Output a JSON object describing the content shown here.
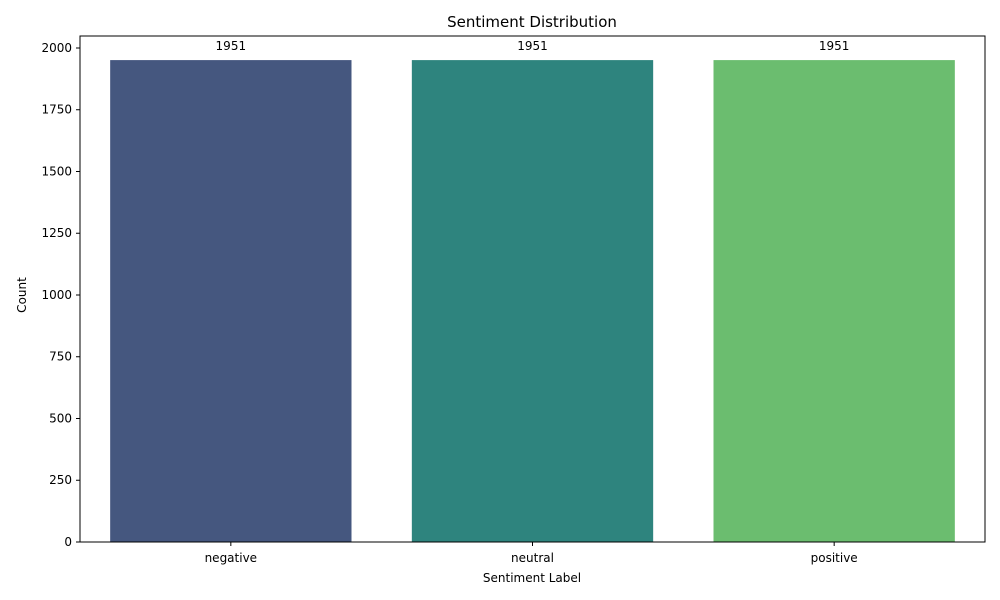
{
  "chart_data": {
    "type": "bar",
    "title": "Sentiment Distribution",
    "xlabel": "Sentiment Label",
    "ylabel": "Count",
    "categories": [
      "negative",
      "neutral",
      "positive"
    ],
    "values": [
      1951,
      1951,
      1951
    ],
    "data_labels": [
      "1951",
      "1951",
      "1951"
    ],
    "colors": [
      "#45577f",
      "#2e847e",
      "#6bbd6f"
    ],
    "ylim": [
      0,
      2048.55
    ],
    "yticks": [
      0,
      250,
      500,
      750,
      1000,
      1250,
      1500,
      1750,
      2000
    ],
    "ytick_labels": [
      "0",
      "250",
      "500",
      "750",
      "1000",
      "1250",
      "1500",
      "1750",
      "2000"
    ],
    "grid": false,
    "legend": "none"
  }
}
